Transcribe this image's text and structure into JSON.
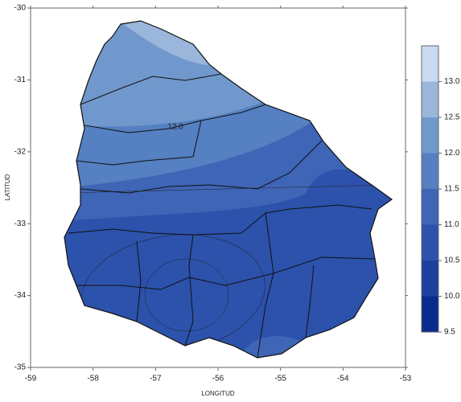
{
  "chart_data": {
    "type": "contour_map",
    "xlabel": "LONGITUD",
    "ylabel": "LATITUD",
    "xlim": [
      -59,
      -53
    ],
    "ylim": [
      -35,
      -30
    ],
    "xticks": [
      -59,
      -58,
      -57,
      -56,
      -55,
      -54,
      -53
    ],
    "yticks": [
      -35,
      -34,
      -33,
      -32,
      -31,
      -30
    ],
    "contour_label": "12.0",
    "levels": [
      9.5,
      10.0,
      10.5,
      11.0,
      11.5,
      12.0,
      12.5,
      13.0,
      13.5
    ],
    "colors": [
      "#0a2a8c",
      "#1d3f9e",
      "#2c52ac",
      "#3e65b6",
      "#5580c2",
      "#7098cc",
      "#9ab6da",
      "#c9dbee"
    ],
    "cbar_ticks": [
      {
        "value": 9.5,
        "label": "9.5"
      },
      {
        "value": 10.0,
        "label": "10.0"
      },
      {
        "value": 10.5,
        "label": "10.5"
      },
      {
        "value": 11.0,
        "label": "11.0"
      },
      {
        "value": 11.5,
        "label": "11.5"
      },
      {
        "value": 12.0,
        "label": "12.0"
      },
      {
        "value": 12.5,
        "label": "12.5"
      },
      {
        "value": 13.0,
        "label": "13.0"
      }
    ]
  }
}
